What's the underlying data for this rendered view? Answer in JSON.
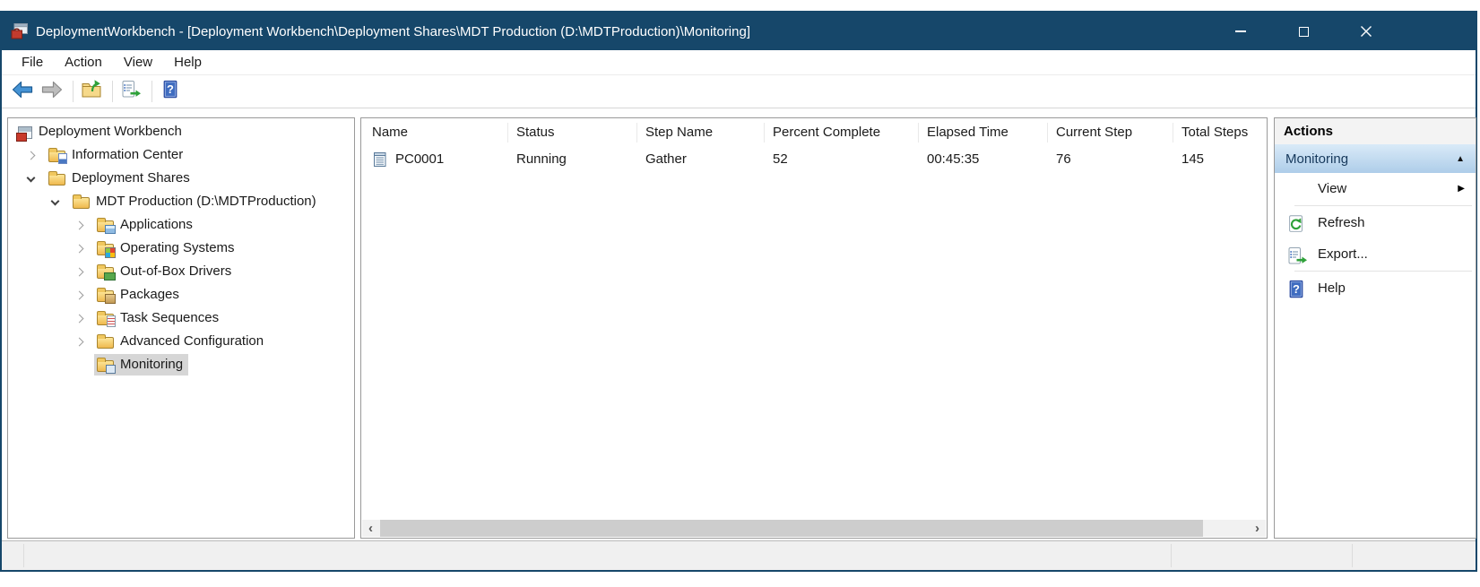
{
  "window": {
    "title": "DeploymentWorkbench - [Deployment Workbench\\Deployment Shares\\MDT Production (D:\\MDTProduction)\\Monitoring]",
    "icon": "toolbox-console-icon",
    "controls": [
      {
        "name": "minimize",
        "icon": "minimize-icon"
      },
      {
        "name": "maximize",
        "icon": "maximize-icon"
      },
      {
        "name": "close",
        "icon": "close-icon"
      }
    ]
  },
  "menu_bar": {
    "items": [
      {
        "label": "File"
      },
      {
        "label": "Action"
      },
      {
        "label": "View"
      },
      {
        "label": "Help"
      }
    ]
  },
  "toolbar": {
    "buttons": [
      {
        "name": "back",
        "icon": "back-arrow-icon"
      },
      {
        "name": "forward",
        "icon": "forward-arrow-icon"
      },
      {
        "name": "up-one-level",
        "icon": "up-folder-icon"
      },
      {
        "name": "export-list",
        "icon": "export-list-icon"
      },
      {
        "name": "help",
        "icon": "help-icon"
      }
    ]
  },
  "tree": {
    "items": [
      {
        "label": "Deployment Workbench",
        "level": 0,
        "expander": null,
        "icon": "console-root-icon",
        "selected": false
      },
      {
        "label": "Information Center",
        "level": 1,
        "expander": "collapsed",
        "icon": "folder-info-icon",
        "selected": false
      },
      {
        "label": "Deployment Shares",
        "level": 1,
        "expander": "expanded",
        "icon": "folder-open-icon",
        "selected": false
      },
      {
        "label": "MDT Production (D:\\MDTProduction)",
        "level": 2,
        "expander": "expanded",
        "icon": "folder-open-icon",
        "selected": false
      },
      {
        "label": "Applications",
        "level": 3,
        "expander": "collapsed",
        "icon": "folder-applications-icon",
        "selected": false
      },
      {
        "label": "Operating Systems",
        "level": 3,
        "expander": "collapsed",
        "icon": "folder-os-icon",
        "selected": false
      },
      {
        "label": "Out-of-Box Drivers",
        "level": 3,
        "expander": "collapsed",
        "icon": "folder-drivers-icon",
        "selected": false
      },
      {
        "label": "Packages",
        "level": 3,
        "expander": "collapsed",
        "icon": "folder-packages-icon",
        "selected": false
      },
      {
        "label": "Task Sequences",
        "level": 3,
        "expander": "collapsed",
        "icon": "folder-tasks-icon",
        "selected": false
      },
      {
        "label": "Advanced Configuration",
        "level": 3,
        "expander": "collapsed",
        "icon": "folder-icon",
        "selected": false
      },
      {
        "label": "Monitoring",
        "level": 3,
        "expander": null,
        "icon": "folder-monitoring-icon",
        "selected": true
      }
    ]
  },
  "results": {
    "columns": [
      "Name",
      "Status",
      "Step Name",
      "Percent Complete",
      "Elapsed Time",
      "Current Step",
      "Total Steps"
    ],
    "rows": [
      {
        "icon": "computer-log-icon",
        "cells": [
          "PC0001",
          "Running",
          "Gather",
          "52",
          "00:45:35",
          "76",
          "145"
        ]
      }
    ]
  },
  "actions_pane": {
    "title": "Actions",
    "section": {
      "label": "Monitoring",
      "collapse_glyph": "▲"
    },
    "items": [
      {
        "label": "View",
        "icon": null,
        "submenu_glyph": "▶",
        "separator_after": true
      },
      {
        "label": "Refresh",
        "icon": "refresh-icon",
        "submenu_glyph": null,
        "separator_after": false
      },
      {
        "label": "Export...",
        "icon": "export-list-icon",
        "submenu_glyph": null,
        "separator_after": true
      },
      {
        "label": "Help",
        "icon": "help-icon",
        "submenu_glyph": null,
        "separator_after": false
      }
    ]
  },
  "scrollbar": {
    "left_glyph": "‹",
    "right_glyph": "›"
  },
  "glyphs": {
    "help": "?"
  },
  "colors": {
    "titlebar": "#16476a",
    "tree_selection": "#d6d6d6",
    "actions_section_top": "#d9eaf8",
    "actions_section_bottom": "#aecde9",
    "folder": "#efb94e"
  }
}
